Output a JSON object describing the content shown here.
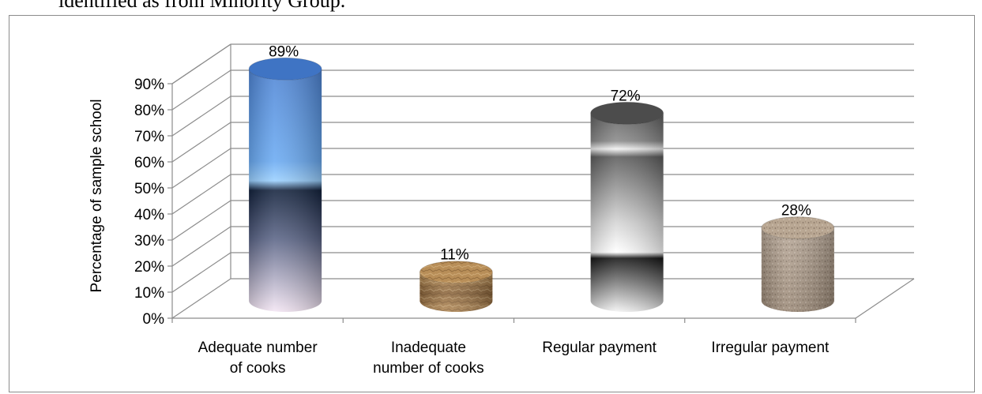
{
  "page": {
    "top_text": "identified as from Minority Group."
  },
  "chart_data": {
    "type": "bar",
    "style": "3d-cylinder",
    "title": "",
    "xlabel": "",
    "ylabel": "Percentage of sample school",
    "ylim": [
      0,
      90
    ],
    "ytick_step": 10,
    "yticks": [
      "0%",
      "10%",
      "20%",
      "30%",
      "40%",
      "50%",
      "60%",
      "70%",
      "80%",
      "90%"
    ],
    "grid": true,
    "legend": "none",
    "categories": [
      [
        "Adequate number",
        "of cooks"
      ],
      [
        "Inadequate",
        "number of cooks"
      ],
      [
        "Regular payment"
      ],
      [
        "Irregular payment"
      ]
    ],
    "values": [
      89,
      11,
      72,
      28
    ],
    "data_labels": [
      "89%",
      "11%",
      "72%",
      "28%"
    ],
    "colors": [
      "#4a86d8",
      "#a37c4e",
      "#7a7a7a",
      "#a89684"
    ]
  }
}
